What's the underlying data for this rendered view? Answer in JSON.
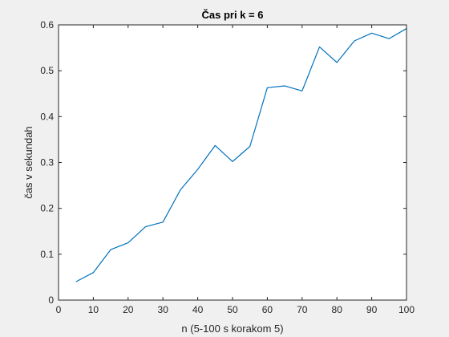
{
  "chart_data": {
    "type": "line",
    "title": "Čas pri k = 6",
    "xlabel": "n (5-100 s korakom 5)",
    "ylabel": "čas v sekundah",
    "xlim": [
      0,
      100
    ],
    "ylim": [
      0,
      0.6
    ],
    "xticks": [
      0,
      10,
      20,
      30,
      40,
      50,
      60,
      70,
      80,
      90,
      100
    ],
    "yticks": [
      0,
      0.1,
      0.2,
      0.3,
      0.4,
      0.5,
      0.6
    ],
    "xtick_labels": [
      "0",
      "10",
      "20",
      "30",
      "40",
      "50",
      "60",
      "70",
      "80",
      "90",
      "100"
    ],
    "ytick_labels": [
      "0",
      "0.1",
      "0.2",
      "0.3",
      "0.4",
      "0.5",
      "0.6"
    ],
    "grid": false,
    "line_color": "#0072BD",
    "series": [
      {
        "x": [
          5,
          10,
          15,
          20,
          25,
          30,
          35,
          40,
          45,
          50,
          55,
          60,
          65,
          70,
          75,
          80,
          85,
          90,
          95,
          100
        ],
        "values": [
          0.04,
          0.06,
          0.11,
          0.125,
          0.16,
          0.17,
          0.24,
          0.285,
          0.337,
          0.302,
          0.335,
          0.463,
          0.467,
          0.456,
          0.552,
          0.518,
          0.565,
          0.582,
          0.57,
          0.592
        ]
      }
    ]
  }
}
